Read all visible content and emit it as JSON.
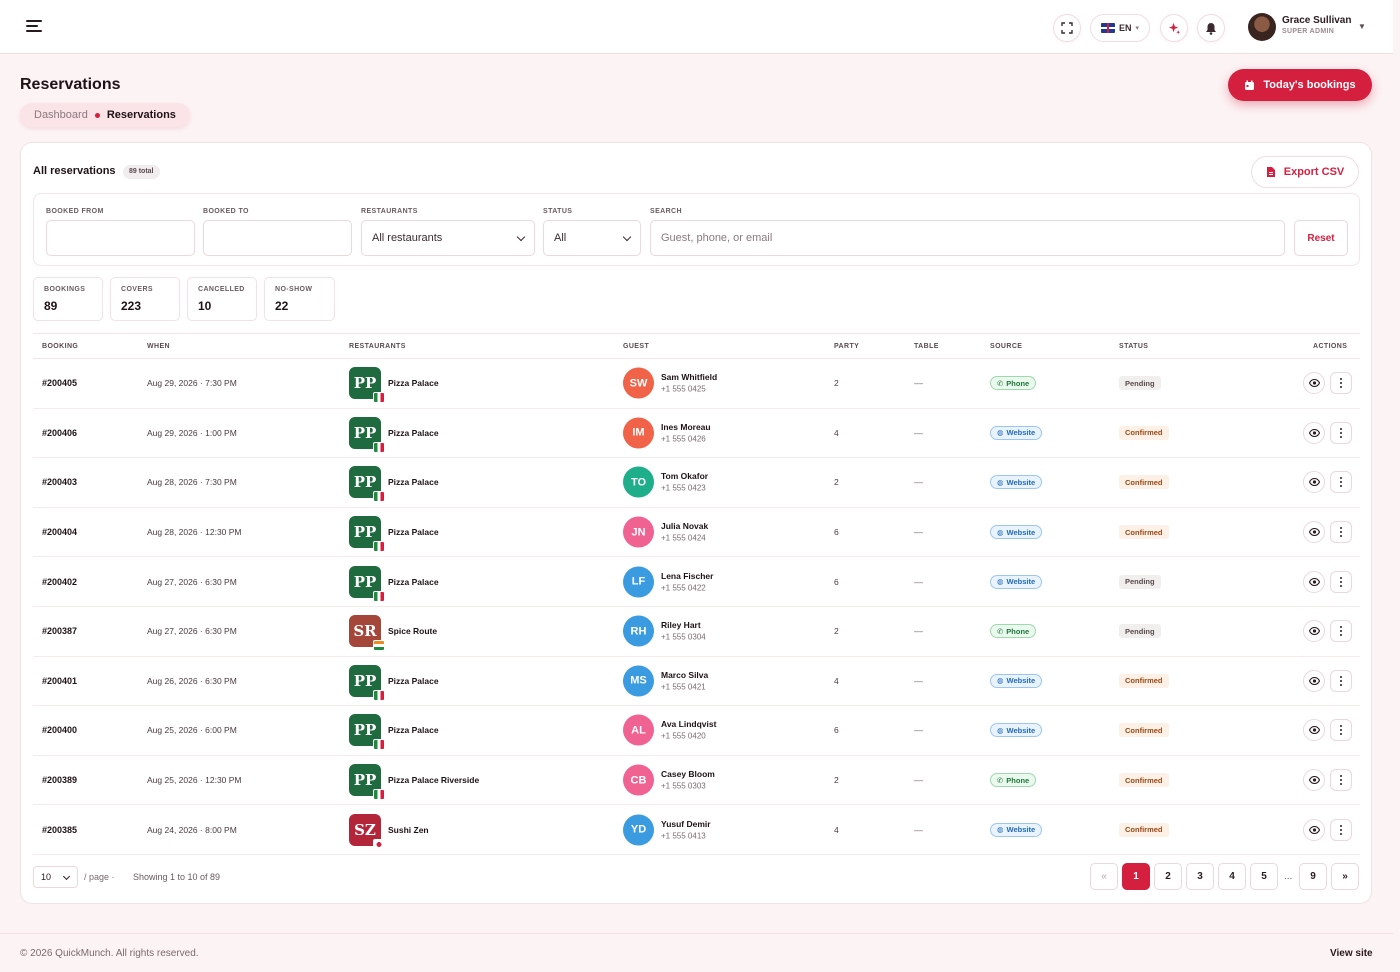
{
  "topbar": {
    "language": "EN",
    "user": {
      "name": "Grace Sullivan",
      "role": "SUPER ADMIN"
    }
  },
  "header": {
    "title": "Reservations",
    "breadcrumb": {
      "parent": "Dashboard",
      "current": "Reservations"
    },
    "today_button": "Today's bookings"
  },
  "card": {
    "title": "All reservations",
    "total_badge": "89 total",
    "export_label": "Export CSV"
  },
  "filters": {
    "booked_from": {
      "label": "BOOKED FROM",
      "value": ""
    },
    "booked_to": {
      "label": "BOOKED TO",
      "value": ""
    },
    "restaurants": {
      "label": "RESTAURANTS",
      "value": "All restaurants"
    },
    "status": {
      "label": "STATUS",
      "value": "All"
    },
    "search": {
      "label": "SEARCH",
      "placeholder": "Guest, phone, or email"
    },
    "reset_label": "Reset"
  },
  "stats": [
    {
      "label": "BOOKINGS",
      "value": "89"
    },
    {
      "label": "COVERS",
      "value": "223"
    },
    {
      "label": "CANCELLED",
      "value": "10"
    },
    {
      "label": "NO-SHOW",
      "value": "22"
    }
  ],
  "table": {
    "columns": [
      "BOOKING",
      "WHEN",
      "RESTAURANTS",
      "GUEST",
      "PARTY",
      "TABLE",
      "SOURCE",
      "STATUS",
      "ACTIONS"
    ],
    "rows": [
      {
        "id": "#200405",
        "when": "Aug 29, 2026 · 7:30 PM",
        "logo": "PP",
        "restaurant": "Pizza Palace",
        "initials": "SW",
        "guest": "Sam Whitfield",
        "phone": "+1 555 0425",
        "party": "2",
        "table": "—",
        "source": "Phone",
        "status": "Pending"
      },
      {
        "id": "#200406",
        "when": "Aug 29, 2026 · 1:00 PM",
        "logo": "PP",
        "restaurant": "Pizza Palace",
        "initials": "IM",
        "guest": "Ines Moreau",
        "phone": "+1 555 0426",
        "party": "4",
        "table": "—",
        "source": "Website",
        "status": "Confirmed"
      },
      {
        "id": "#200403",
        "when": "Aug 28, 2026 · 7:30 PM",
        "logo": "PP",
        "restaurant": "Pizza Palace",
        "initials": "TO",
        "guest": "Tom Okafor",
        "phone": "+1 555 0423",
        "party": "2",
        "table": "—",
        "source": "Website",
        "status": "Confirmed"
      },
      {
        "id": "#200404",
        "when": "Aug 28, 2026 · 12:30 PM",
        "logo": "PP",
        "restaurant": "Pizza Palace",
        "initials": "JN",
        "guest": "Julia Novak",
        "phone": "+1 555 0424",
        "party": "6",
        "table": "—",
        "source": "Website",
        "status": "Confirmed"
      },
      {
        "id": "#200402",
        "when": "Aug 27, 2026 · 6:30 PM",
        "logo": "PP",
        "restaurant": "Pizza Palace",
        "initials": "LF",
        "guest": "Lena Fischer",
        "phone": "+1 555 0422",
        "party": "6",
        "table": "—",
        "source": "Website",
        "status": "Pending"
      },
      {
        "id": "#200387",
        "when": "Aug 27, 2026 · 6:30 PM",
        "logo": "SR",
        "restaurant": "Spice Route",
        "initials": "RH",
        "guest": "Riley Hart",
        "phone": "+1 555 0304",
        "party": "2",
        "table": "—",
        "source": "Phone",
        "status": "Pending"
      },
      {
        "id": "#200401",
        "when": "Aug 26, 2026 · 6:30 PM",
        "logo": "PP",
        "restaurant": "Pizza Palace",
        "initials": "MS",
        "guest": "Marco Silva",
        "phone": "+1 555 0421",
        "party": "4",
        "table": "—",
        "source": "Website",
        "status": "Confirmed"
      },
      {
        "id": "#200400",
        "when": "Aug 25, 2026 · 6:00 PM",
        "logo": "PP",
        "restaurant": "Pizza Palace",
        "initials": "AL",
        "guest": "Ava Lindqvist",
        "phone": "+1 555 0420",
        "party": "6",
        "table": "—",
        "source": "Website",
        "status": "Confirmed"
      },
      {
        "id": "#200389",
        "when": "Aug 25, 2026 · 12:30 PM",
        "logo": "PP",
        "restaurant": "Pizza Palace Riverside",
        "initials": "CB",
        "guest": "Casey Bloom",
        "phone": "+1 555 0303",
        "party": "2",
        "table": "—",
        "source": "Phone",
        "status": "Confirmed"
      },
      {
        "id": "#200385",
        "when": "Aug 24, 2026 · 8:00 PM",
        "logo": "SZ",
        "restaurant": "Sushi Zen",
        "initials": "YD",
        "guest": "Yusuf Demir",
        "phone": "+1 555 0413",
        "party": "4",
        "table": "—",
        "source": "Website",
        "status": "Confirmed"
      }
    ]
  },
  "pagination": {
    "page_size": "10",
    "per_page_label": "/ page ·",
    "showing": "Showing 1 to 10 of 89",
    "prev": "«",
    "next": "»",
    "pages": [
      "1",
      "2",
      "3",
      "4",
      "5",
      "9"
    ],
    "ellipsis": "...",
    "current": "1"
  },
  "footer": {
    "copyright": "© 2026 QuickMunch. All rights reserved.",
    "view_site": "View site"
  },
  "colors": {
    "accent": "#d41f3f",
    "pizza_palace_logo": "#1f6b3f",
    "spice_route_logo": "#a4473a",
    "sushi_zen_logo": "#b3263a",
    "avatars": {
      "SW": "#f06348",
      "IM": "#f06348",
      "TO": "#1fae8a",
      "JN": "#f06292",
      "LF": "#3b9be0",
      "RH": "#3b9be0",
      "MS": "#3b9be0",
      "AL": "#f06292",
      "CB": "#f06292",
      "YD": "#3b9be0"
    }
  },
  "icons": {
    "menu": "hamburger-icon",
    "fullscreen": "fullscreen-icon",
    "ai": "sparkle-icon",
    "notifications": "bell-icon",
    "calendar": "calendar-icon",
    "file": "file-icon",
    "view": "eye-icon",
    "more": "more-vertical-icon",
    "phone": "phone-icon",
    "website": "globe-icon"
  }
}
